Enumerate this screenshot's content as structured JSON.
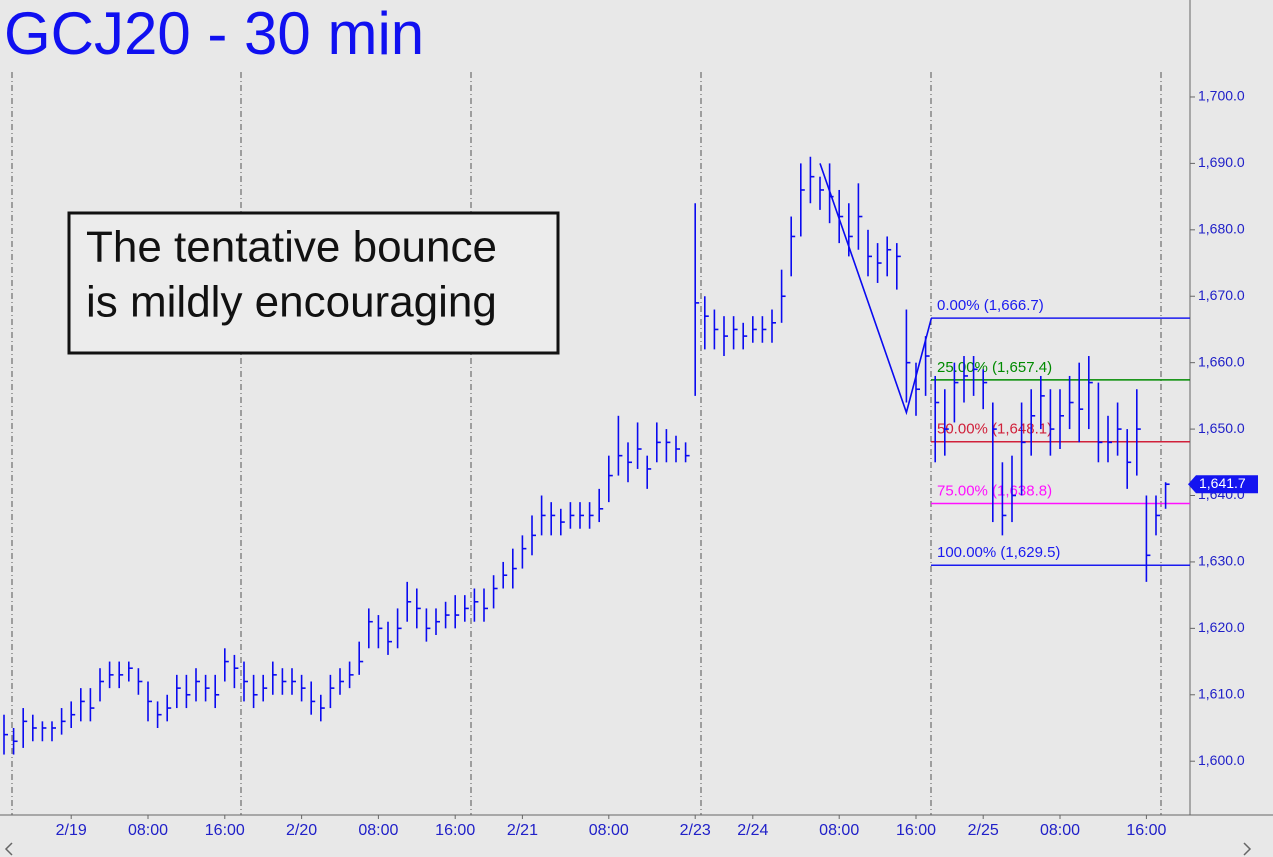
{
  "chart_data": {
    "type": "ohlc",
    "title": "GCJ20 - 30 min",
    "annotation": [
      "The tentative bounce",
      "is mildly encouraging"
    ],
    "color": "#0a0af0",
    "categories": [
      null,
      null,
      null,
      null,
      null,
      null,
      null,
      "2/19",
      null,
      null,
      null,
      null,
      null,
      null,
      null,
      "08:00",
      null,
      null,
      null,
      null,
      null,
      null,
      null,
      "16:00",
      null,
      null,
      null,
      null,
      null,
      null,
      null,
      "2/20",
      null,
      null,
      null,
      null,
      null,
      null,
      null,
      "08:00",
      null,
      null,
      null,
      null,
      null,
      null,
      null,
      "16:00",
      null,
      null,
      null,
      null,
      null,
      null,
      "2/21",
      null,
      null,
      null,
      null,
      null,
      null,
      null,
      null,
      "08:00",
      null,
      null,
      null,
      null,
      null,
      null,
      null,
      null,
      "2/23",
      null,
      null,
      null,
      null,
      null,
      "2/24",
      null,
      null,
      null,
      null,
      null,
      null,
      null,
      null,
      "08:00",
      null,
      null,
      null,
      null,
      null,
      null,
      null,
      "16:00",
      null,
      null,
      null,
      null,
      null,
      null,
      "2/25",
      null,
      null,
      null,
      null,
      null,
      null,
      null,
      "08:00",
      null,
      null,
      null,
      null,
      null,
      null,
      null,
      null,
      "16:00",
      null,
      null
    ],
    "high": [
      1607,
      1605,
      1608,
      1607,
      1606,
      1606,
      1608,
      1609,
      1611,
      1611,
      1614,
      1615,
      1615,
      1615,
      1614,
      1612,
      1609,
      1610,
      1613,
      1613,
      1614,
      1613,
      1613,
      1617,
      1616,
      1615,
      1613,
      1613,
      1615,
      1614,
      1614,
      1613,
      1612,
      1610,
      1613,
      1614,
      1615,
      1618,
      1623,
      1622,
      1621,
      1623,
      1627,
      1626,
      1623,
      1623,
      1624,
      1625,
      1625,
      1626,
      1626,
      1628,
      1630,
      1632,
      1634,
      1637,
      1640,
      1639,
      1638,
      1639,
      1639,
      1639,
      1641,
      1646,
      1652,
      1648,
      1651,
      1646,
      1651,
      1650,
      1649,
      1648,
      1684,
      1670,
      1668,
      1667,
      1667,
      1666,
      1667,
      1667,
      1668,
      1674,
      1682,
      1690,
      1691,
      1688,
      1690,
      1686,
      1684,
      1687,
      1680,
      1678,
      1679,
      1678,
      1668,
      1660,
      1664,
      1658,
      1656,
      1660,
      1661,
      1661,
      1659,
      1654,
      1645,
      1646,
      1654,
      1656,
      1658,
      1656,
      1656,
      1658,
      1660,
      1661,
      1657,
      1652,
      1654,
      1650,
      1656,
      1640,
      1640,
      1642
    ],
    "low": [
      1601,
      1601,
      1602,
      1603,
      1603,
      1603,
      1604,
      1605,
      1606,
      1606,
      1609,
      1611,
      1611,
      1612,
      1610,
      1606,
      1605,
      1606,
      1608,
      1608,
      1609,
      1609,
      1608,
      1612,
      1611,
      1609,
      1608,
      1609,
      1610,
      1610,
      1610,
      1609,
      1607,
      1606,
      1608,
      1610,
      1611,
      1613,
      1617,
      1617,
      1616,
      1617,
      1621,
      1620,
      1618,
      1619,
      1620,
      1620,
      1621,
      1621,
      1621,
      1623,
      1626,
      1626,
      1629,
      1631,
      1634,
      1634,
      1634,
      1635,
      1635,
      1635,
      1636,
      1639,
      1643,
      1642,
      1644,
      1641,
      1645,
      1645,
      1645,
      1645,
      1655,
      1662,
      1662,
      1661,
      1662,
      1662,
      1663,
      1663,
      1663,
      1666,
      1673,
      1679,
      1684,
      1683,
      1681,
      1678,
      1676,
      1677,
      1673,
      1672,
      1673,
      1671,
      1654,
      1652,
      1655,
      1645,
      1646,
      1651,
      1654,
      1655,
      1653,
      1636,
      1634,
      1636,
      1640,
      1646,
      1650,
      1646,
      1647,
      1650,
      1648,
      1650,
      1645,
      1645,
      1646,
      1641,
      1643,
      1627,
      1634,
      1638
    ],
    "close": [
      1604,
      1603,
      1606,
      1605,
      1605,
      1605,
      1606,
      1607,
      1609,
      1608,
      1612,
      1613,
      1613,
      1614,
      1612,
      1609,
      1607,
      1608,
      1611,
      1610,
      1612,
      1611,
      1610,
      1615,
      1614,
      1612,
      1610,
      1611,
      1613,
      1612,
      1612,
      1611,
      1609,
      1608,
      1611,
      1612,
      1613,
      1615,
      1621,
      1620,
      1618,
      1620,
      1624,
      1623,
      1620,
      1621,
      1622,
      1622,
      1623,
      1624,
      1623,
      1626,
      1628,
      1629,
      1632,
      1634,
      1637,
      1637,
      1636,
      1637,
      1637,
      1637,
      1638,
      1643,
      1646,
      1645,
      1647,
      1644,
      1648,
      1648,
      1647,
      1646,
      1669,
      1667,
      1665,
      1664,
      1665,
      1664,
      1665,
      1665,
      1666,
      1670,
      1679,
      1686,
      1688,
      1686,
      1685,
      1682,
      1679,
      1682,
      1676,
      1675,
      1677,
      1676,
      1660,
      1656,
      1661,
      1654,
      1650,
      1657,
      1658,
      1659,
      1657,
      1650,
      1637,
      1640,
      1648,
      1652,
      1655,
      1650,
      1652,
      1654,
      1653,
      1657,
      1648,
      1648,
      1650,
      1645,
      1650,
      1631,
      1637,
      1641.7
    ],
    "swing": {
      "x": [
        85,
        94,
        96.6
      ],
      "values": [
        1690,
        1652.5,
        1666.7
      ]
    },
    "levels": [
      {
        "label": "0.00% (1,666.7)",
        "value": 1666.7,
        "color": "#1a1af0"
      },
      {
        "label": "25.00% (1,657.4)",
        "value": 1657.4,
        "color": "#008a00"
      },
      {
        "label": "50.00% (1,648.1)",
        "value": 1648.1,
        "color": "#d0203a"
      },
      {
        "label": "75.00% (1,638.8)",
        "value": 1638.8,
        "color": "#ff10ff"
      },
      {
        "label": "100.00% (1,629.5)",
        "value": 1629.5,
        "color": "#1a1af0"
      }
    ],
    "last_price": {
      "value": 1641.7,
      "label": "1,641.7"
    },
    "ylim": [
      1591.9,
      1714.6
    ],
    "yticks": [
      {
        "value": 1600,
        "label": "1,600.0"
      },
      {
        "value": 1610,
        "label": "1,610.0"
      },
      {
        "value": 1620,
        "label": "1,620.0"
      },
      {
        "value": 1630,
        "label": "1,630.0"
      },
      {
        "value": 1640,
        "label": "1,640.0"
      },
      {
        "value": 1650,
        "label": "1,650.0"
      },
      {
        "value": 1660,
        "label": "1,660.0"
      },
      {
        "value": 1670,
        "label": "1,670.0"
      },
      {
        "value": 1680,
        "label": "1,680.0"
      },
      {
        "value": 1690,
        "label": "1,690.0"
      },
      {
        "value": 1700,
        "label": "1,700.0"
      }
    ]
  }
}
